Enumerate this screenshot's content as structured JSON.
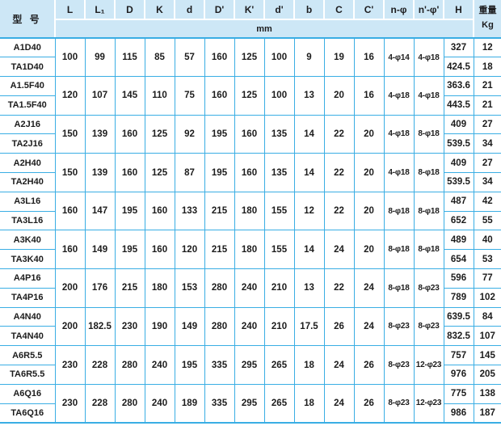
{
  "table": {
    "model_header": "型 号",
    "unit_label": "mm",
    "weight_header": "重量",
    "weight_unit": "Kg",
    "dim_headers": [
      "L",
      "L₁",
      "D",
      "K",
      "d",
      "D'",
      "K'",
      "d'",
      "b",
      "C",
      "C'",
      "n-φ",
      "n'-φ'",
      "H"
    ],
    "groups": [
      {
        "models": [
          "A1D40",
          "TA1D40"
        ],
        "dims": [
          "100",
          "99",
          "115",
          "85",
          "57",
          "160",
          "125",
          "100",
          "9",
          "19",
          "16",
          "4-φ14",
          "4-φ18"
        ],
        "H": [
          "327",
          "424.5"
        ],
        "weight": [
          "12",
          "18"
        ]
      },
      {
        "models": [
          "A1.5F40",
          "TA1.5F40"
        ],
        "dims": [
          "120",
          "107",
          "145",
          "110",
          "75",
          "160",
          "125",
          "100",
          "13",
          "20",
          "16",
          "4-φ18",
          "4-φ18"
        ],
        "H": [
          "363.6",
          "443.5"
        ],
        "weight": [
          "21",
          "21"
        ]
      },
      {
        "models": [
          "A2J16",
          "TA2J16"
        ],
        "dims": [
          "150",
          "139",
          "160",
          "125",
          "92",
          "195",
          "160",
          "135",
          "14",
          "22",
          "20",
          "4-φ18",
          "8-φ18"
        ],
        "H": [
          "409",
          "539.5"
        ],
        "weight": [
          "27",
          "34"
        ]
      },
      {
        "models": [
          "A2H40",
          "TA2H40"
        ],
        "dims": [
          "150",
          "139",
          "160",
          "125",
          "87",
          "195",
          "160",
          "135",
          "14",
          "22",
          "20",
          "4-φ18",
          "8-φ18"
        ],
        "H": [
          "409",
          "539.5"
        ],
        "weight": [
          "27",
          "34"
        ]
      },
      {
        "models": [
          "A3L16",
          "TA3L16"
        ],
        "dims": [
          "160",
          "147",
          "195",
          "160",
          "133",
          "215",
          "180",
          "155",
          "12",
          "22",
          "20",
          "8-φ18",
          "8-φ18"
        ],
        "H": [
          "487",
          "652"
        ],
        "weight": [
          "42",
          "55"
        ]
      },
      {
        "models": [
          "A3K40",
          "TA3K40"
        ],
        "dims": [
          "160",
          "149",
          "195",
          "160",
          "120",
          "215",
          "180",
          "155",
          "14",
          "24",
          "20",
          "8-φ18",
          "8-φ18"
        ],
        "H": [
          "489",
          "654"
        ],
        "weight": [
          "40",
          "53"
        ]
      },
      {
        "models": [
          "A4P16",
          "TA4P16"
        ],
        "dims": [
          "200",
          "176",
          "215",
          "180",
          "153",
          "280",
          "240",
          "210",
          "13",
          "22",
          "24",
          "8-φ18",
          "8-φ23"
        ],
        "H": [
          "596",
          "789"
        ],
        "weight": [
          "77",
          "102"
        ]
      },
      {
        "models": [
          "A4N40",
          "TA4N40"
        ],
        "dims": [
          "200",
          "182.5",
          "230",
          "190",
          "149",
          "280",
          "240",
          "210",
          "17.5",
          "26",
          "24",
          "8-φ23",
          "8-φ23"
        ],
        "H": [
          "639.5",
          "832.5"
        ],
        "weight": [
          "84",
          "107"
        ]
      },
      {
        "models": [
          "A6R5.5",
          "TA6R5.5"
        ],
        "dims": [
          "230",
          "228",
          "280",
          "240",
          "195",
          "335",
          "295",
          "265",
          "18",
          "24",
          "26",
          "8-φ23",
          "12-φ23"
        ],
        "H": [
          "757",
          "976"
        ],
        "weight": [
          "145",
          "205"
        ]
      },
      {
        "models": [
          "A6Q16",
          "TA6Q16"
        ],
        "dims": [
          "230",
          "228",
          "280",
          "240",
          "189",
          "335",
          "295",
          "265",
          "18",
          "24",
          "26",
          "8-φ23",
          "12-φ23"
        ],
        "H": [
          "775",
          "986"
        ],
        "weight": [
          "138",
          "187"
        ]
      }
    ]
  },
  "colors": {
    "header_bg": "#cde7f6",
    "grid_line": "#3aaee4",
    "header_separator": "#ffffff",
    "text": "#1c1c1c"
  }
}
